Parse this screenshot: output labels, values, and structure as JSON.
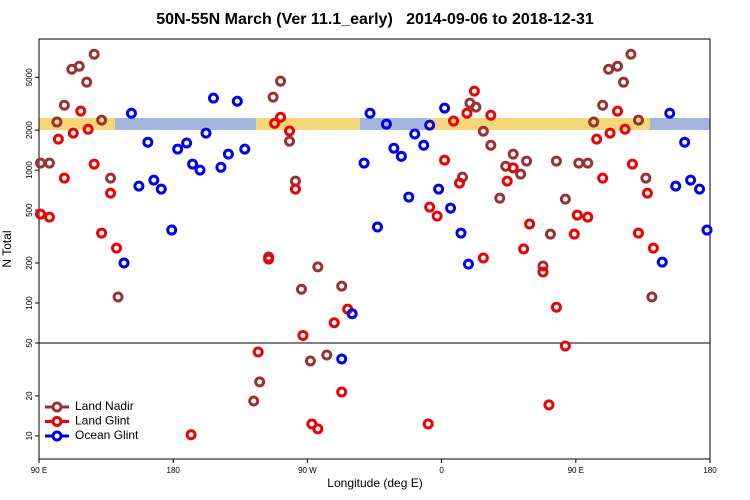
{
  "chart_data": {
    "type": "scatter",
    "title": "50N-55N March (Ver 11.1_early)   2014-09-06 to 2018-12-31",
    "x_label": "Longitude (deg E)",
    "y_label": "N Total",
    "yscale": "log",
    "xlim": [
      90,
      540
    ],
    "ylim": [
      6.7,
      9700
    ],
    "xticks": [
      {
        "value": 90,
        "label": "90 E"
      },
      180,
      {
        "value": 270,
        "label": "90 W"
      },
      {
        "value": 360,
        "label": "0"
      },
      {
        "value": 450,
        "label": "90 E"
      },
      {
        "value": 540,
        "label": "180"
      }
    ],
    "yticks": [
      10,
      20,
      50,
      100,
      200,
      500,
      1000,
      2000,
      5000
    ],
    "hline": 50,
    "legend": "bottom-left",
    "series": [
      {
        "name": "Land Nadir",
        "color": "#993333",
        "x": [
          91,
          97,
          102,
          107,
          112,
          117,
          122,
          127,
          132,
          138,
          143,
          234,
          238,
          244,
          247,
          252,
          258,
          262,
          266,
          272,
          277,
          283,
          293,
          374,
          379,
          383,
          388,
          393,
          399,
          403,
          408,
          413,
          417,
          428,
          433,
          437,
          443,
          452,
          458,
          462,
          468,
          472,
          478,
          482,
          487,
          492,
          497,
          501
        ],
        "values": [
          1130,
          1130,
          2300,
          3080,
          5740,
          6050,
          4590,
          7450,
          2380,
          871,
          111,
          18.3,
          25.5,
          222,
          3540,
          4670,
          1650,
          826,
          127,
          36.6,
          187,
          40.6,
          134,
          886,
          3190,
          2980,
          1960,
          1540,
          615,
          1070,
          1320,
          933,
          1170,
          190,
          330,
          1170,
          605,
          1130,
          1130,
          2300,
          3080,
          5740,
          6050,
          4590,
          7450,
          2380,
          871,
          111
        ]
      },
      {
        "name": "Land Glint",
        "color": "#ee0000",
        "x": [
          91,
          97,
          103,
          107,
          113,
          118,
          123,
          127,
          132,
          138,
          142,
          192,
          237,
          244,
          248,
          252,
          258,
          262,
          267,
          273,
          277,
          288,
          293,
          297,
          351,
          352,
          357,
          362,
          368,
          372,
          377,
          382,
          388,
          393,
          404,
          408,
          415,
          419,
          428,
          432,
          437,
          443,
          449,
          451,
          458,
          464,
          468,
          473,
          478,
          483,
          488,
          492,
          498,
          502
        ],
        "values": [
          467,
          443,
          1710,
          871,
          1900,
          2780,
          2030,
          1110,
          336,
          671,
          259,
          10.2,
          42.8,
          214,
          2250,
          2500,
          1970,
          719,
          57,
          12.3,
          11.3,
          71,
          21.4,
          90,
          12.3,
          527,
          451,
          1190,
          2340,
          798,
          2680,
          3930,
          218,
          2590,
          826,
          1040,
          255,
          393,
          171,
          17.1,
          93,
          47.5,
          330,
          459,
          443,
          1710,
          871,
          1900,
          2780,
          2030,
          1110,
          336,
          671,
          259
        ]
      },
      {
        "name": "Ocean Glint",
        "color": "#0000ee",
        "x": [
          147,
          152,
          157,
          163,
          167,
          172,
          179,
          183,
          189,
          193,
          198,
          202,
          207,
          212,
          217,
          223,
          228,
          293,
          300,
          308,
          312,
          317,
          323,
          328,
          333,
          338,
          342,
          348,
          352,
          358,
          362,
          366,
          373,
          378,
          508,
          513,
          517,
          523,
          527,
          533,
          538
        ],
        "values": [
          200,
          2680,
          758,
          1620,
          841,
          719,
          354,
          1440,
          1600,
          1110,
          1000,
          1900,
          3480,
          1050,
          1320,
          3300,
          1440,
          37.9,
          83,
          1130,
          2680,
          373,
          2220,
          1460,
          1270,
          627,
          1870,
          1540,
          2180,
          719,
          2930,
          518,
          336,
          196,
          203,
          2680,
          758,
          1620,
          841,
          719,
          354
        ]
      }
    ]
  }
}
